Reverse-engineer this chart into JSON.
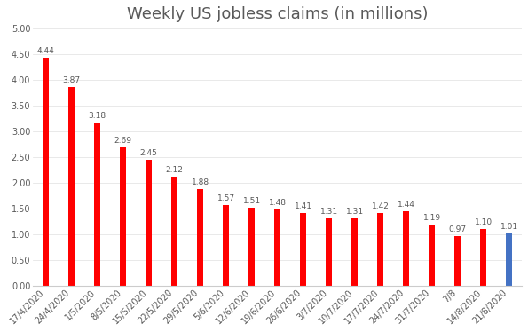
{
  "title": "Weekly US jobless claims (in millions)",
  "x_labels": [
    "17/4/2020",
    "24/4/2020",
    "1/5/2020",
    "8/5/2020",
    "15/5/2020",
    "22/5/2020",
    "29/5/2020",
    "5/6/2020",
    "12/6/2020",
    "19/6/2020",
    "26/6/2020",
    "3/7/2020",
    "10/7/2020",
    "17/7/2020",
    "24/7/2020",
    "31/7/2020",
    "7/8",
    "14/8/2020",
    "21/8/2020"
  ],
  "values": [
    4.44,
    3.87,
    3.18,
    2.69,
    2.45,
    2.12,
    1.88,
    1.57,
    1.51,
    1.48,
    1.41,
    1.31,
    1.31,
    1.42,
    1.44,
    1.19,
    0.97,
    1.1,
    1.01
  ],
  "bar_colors": [
    "#FF0000",
    "#FF0000",
    "#FF0000",
    "#FF0000",
    "#FF0000",
    "#FF0000",
    "#FF0000",
    "#FF0000",
    "#FF0000",
    "#FF0000",
    "#FF0000",
    "#FF0000",
    "#FF0000",
    "#FF0000",
    "#FF0000",
    "#FF0000",
    "#FF0000",
    "#FF0000",
    "#4472C4"
  ],
  "ylim": [
    0,
    5.0
  ],
  "yticks": [
    0.0,
    0.5,
    1.0,
    1.5,
    2.0,
    2.5,
    3.0,
    3.5,
    4.0,
    4.5,
    5.0
  ],
  "label_color": "#595959",
  "background_color": "#FFFFFF",
  "title_fontsize": 13,
  "tick_fontsize": 7,
  "value_fontsize": 6.5,
  "bar_width": 0.25
}
